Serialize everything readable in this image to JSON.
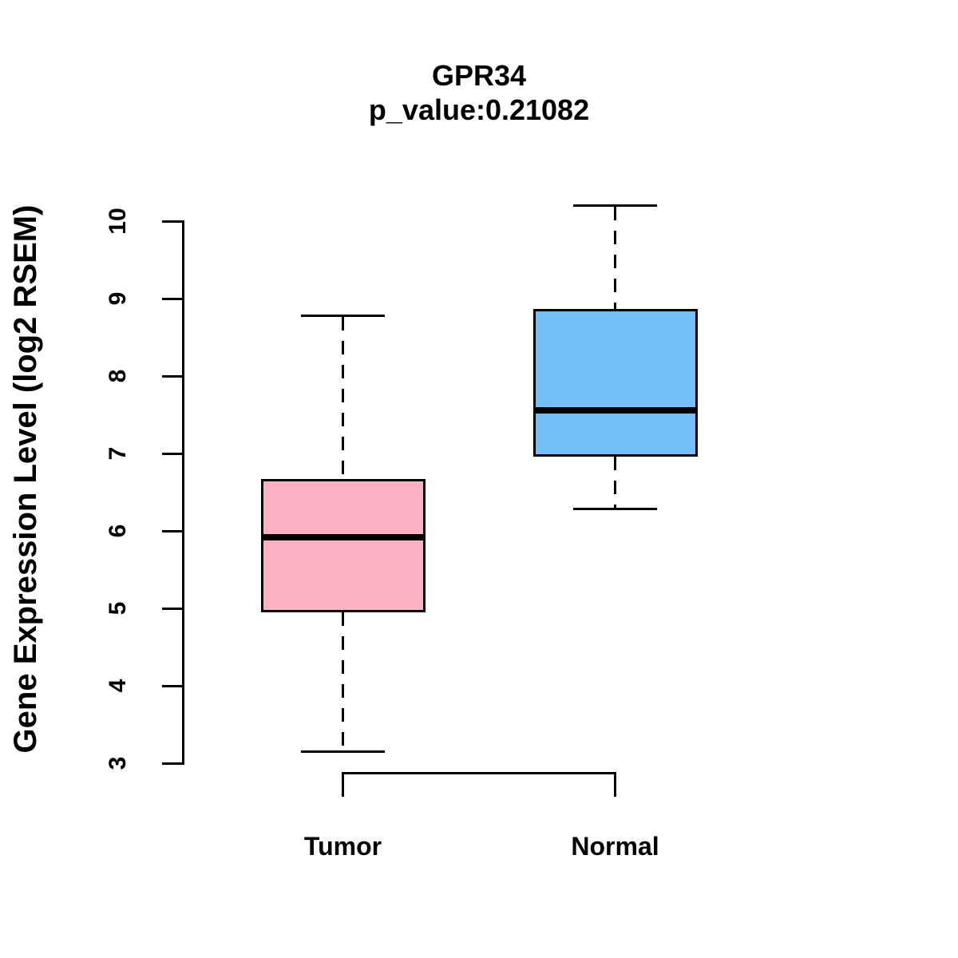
{
  "chart_data": {
    "type": "boxplot",
    "title": "GPR34",
    "subtitle": "p_value:0.21082",
    "ylabel": "Gene Expression Level (log2 RSEM)",
    "xlabel": "",
    "categories": [
      "Tumor",
      "Normal"
    ],
    "yticks": [
      3,
      4,
      5,
      6,
      7,
      8,
      9,
      10
    ],
    "ylim": [
      3,
      10
    ],
    "grid": false,
    "legend": "none",
    "series": [
      {
        "name": "Tumor",
        "color": "#FFB1C4",
        "whisker_low": 3.15,
        "q1": 4.95,
        "median": 5.92,
        "q3": 6.67,
        "whisker_high": 8.78
      },
      {
        "name": "Normal",
        "color": "#74BFF7",
        "whisker_low": 6.28,
        "q1": 6.96,
        "median": 7.56,
        "q3": 8.87,
        "whisker_high": 10.2
      }
    ],
    "colors": {
      "stroke": "#000000",
      "background": "#FFFFFF",
      "tumor_fill": "#FFB1C4",
      "normal_fill": "#74BFF7"
    }
  }
}
